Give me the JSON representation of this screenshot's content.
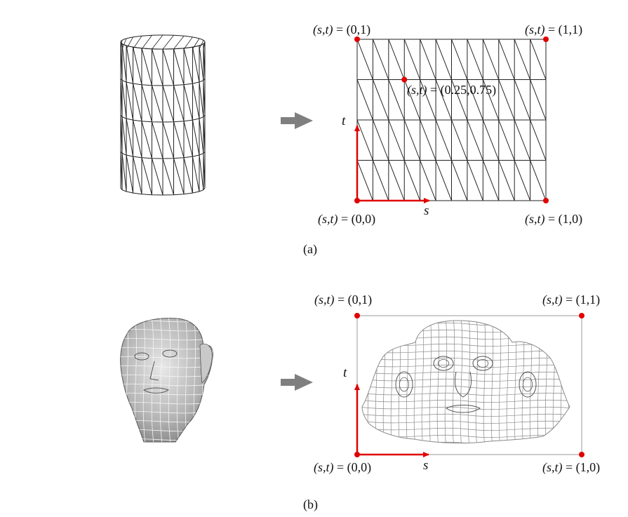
{
  "colors": {
    "mesh_line": "#222222",
    "face_line": "#8a8a8a",
    "arrow": "#7f7f7f",
    "marker": "#e00000",
    "axis": "#e00000",
    "frame": "#9a9a9a"
  },
  "panel_a": {
    "caption": "(a)",
    "object": "cylinder-mesh",
    "corner_labels": {
      "top_left": {
        "prefix": "(s,t) = ",
        "value": "(0,1)"
      },
      "top_right": {
        "prefix": "(s,t) = ",
        "value": "(1,1)"
      },
      "bottom_left": {
        "prefix": "(s,t) = ",
        "value": "(0,0)"
      },
      "bottom_right": {
        "prefix": "(s,t) = ",
        "value": "(1,0)"
      }
    },
    "sample_point": {
      "prefix": "(s,t) = ",
      "value": "(0.25,0.75)",
      "s": 0.25,
      "t": 0.75
    },
    "axis_s": "s",
    "axis_t": "t",
    "grid": {
      "columns": 12,
      "rows": 4
    }
  },
  "panel_b": {
    "caption": "(b)",
    "object": "head-mesh",
    "corner_labels": {
      "top_left": {
        "prefix": "(s,t) = ",
        "value": "(0,1)"
      },
      "top_right": {
        "prefix": "(s,t) = ",
        "value": "(1,1)"
      },
      "bottom_left": {
        "prefix": "(s,t) = ",
        "value": "(0,0)"
      },
      "bottom_right": {
        "prefix": "(s,t) = ",
        "value": "(1,0)"
      }
    },
    "axis_s": "s",
    "axis_t": "t"
  }
}
